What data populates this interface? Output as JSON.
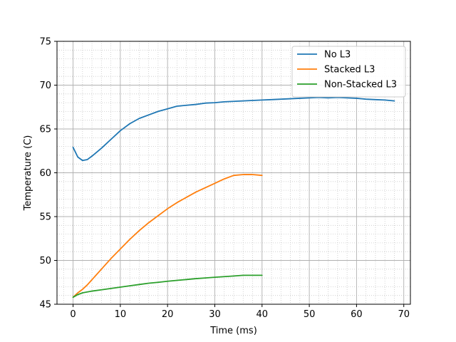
{
  "chart_data": {
    "type": "line",
    "xlabel": "Time (ms)",
    "ylabel": "Temperature (C)",
    "xlim": [
      -3.4,
      71.4
    ],
    "ylim": [
      45,
      75
    ],
    "xticks": [
      0,
      10,
      20,
      30,
      40,
      50,
      60,
      70
    ],
    "yticks": [
      45,
      50,
      55,
      60,
      65,
      70,
      75
    ],
    "grid": "major-and-minor",
    "legend_position": "top-right",
    "series": [
      {
        "name": "No L3",
        "color": "#1f77b4",
        "x": [
          0,
          1,
          2,
          3,
          4,
          6,
          8,
          10,
          12,
          14,
          16,
          18,
          20,
          22,
          24,
          26,
          28,
          30,
          32,
          34,
          36,
          38,
          40,
          42,
          44,
          46,
          48,
          50,
          52,
          54,
          56,
          58,
          60,
          62,
          64,
          66,
          68
        ],
        "y": [
          62.9,
          61.8,
          61.4,
          61.5,
          61.9,
          62.8,
          63.8,
          64.8,
          65.6,
          66.2,
          66.6,
          67.0,
          67.3,
          67.6,
          67.7,
          67.8,
          67.95,
          68.0,
          68.1,
          68.15,
          68.2,
          68.25,
          68.3,
          68.35,
          68.4,
          68.45,
          68.5,
          68.55,
          68.6,
          68.55,
          68.6,
          68.55,
          68.5,
          68.4,
          68.35,
          68.3,
          68.2
        ]
      },
      {
        "name": "Stacked L3",
        "color": "#ff7f0e",
        "x": [
          0,
          1,
          2,
          3,
          4,
          6,
          8,
          10,
          12,
          14,
          16,
          18,
          20,
          22,
          24,
          26,
          28,
          30,
          32,
          34,
          36,
          38,
          40
        ],
        "y": [
          45.8,
          46.3,
          46.7,
          47.2,
          47.8,
          49.0,
          50.2,
          51.3,
          52.4,
          53.4,
          54.3,
          55.1,
          55.9,
          56.6,
          57.2,
          57.8,
          58.3,
          58.8,
          59.3,
          59.7,
          59.8,
          59.8,
          59.7
        ]
      },
      {
        "name": "Non-Stacked L3",
        "color": "#2ca02c",
        "x": [
          0,
          1,
          2,
          4,
          6,
          8,
          10,
          12,
          14,
          16,
          18,
          20,
          22,
          24,
          26,
          28,
          30,
          32,
          34,
          36,
          38,
          40
        ],
        "y": [
          45.8,
          46.1,
          46.3,
          46.5,
          46.65,
          46.8,
          46.95,
          47.1,
          47.25,
          47.4,
          47.5,
          47.62,
          47.72,
          47.82,
          47.92,
          48.0,
          48.08,
          48.15,
          48.22,
          48.3,
          48.3,
          48.3
        ]
      }
    ]
  }
}
